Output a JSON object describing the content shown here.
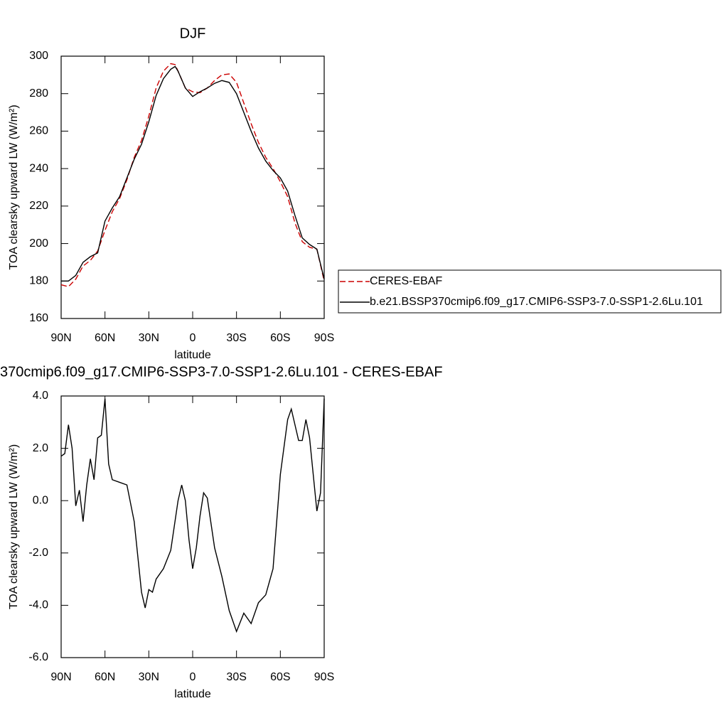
{
  "chart_data": [
    {
      "type": "line",
      "title": "DJF",
      "xlabel": "latitude",
      "ylabel": "TOA clearsky upward LW (W/m²)",
      "x": [
        90,
        85,
        80,
        75,
        70,
        65,
        60,
        55,
        50,
        45,
        40,
        35,
        30,
        25,
        20,
        15,
        12,
        10,
        5,
        0,
        -5,
        -10,
        -15,
        -20,
        -25,
        -30,
        -35,
        -40,
        -45,
        -50,
        -55,
        -60,
        -65,
        -70,
        -75,
        -80,
        -85,
        -90
      ],
      "series": [
        {
          "name": "CERES-EBAF",
          "color": "#cc0000",
          "linestyle": "dashed",
          "values": [
            178,
            177,
            181,
            188,
            191,
            196,
            207,
            217,
            224,
            234,
            246,
            255,
            268,
            283,
            292,
            296,
            295.5,
            292,
            283,
            281,
            280.5,
            283,
            287,
            290,
            290.5,
            286,
            275,
            264,
            254,
            246,
            240,
            233,
            225,
            211,
            201,
            198,
            197,
            180
          ]
        },
        {
          "name": "b.e21.BSSP370cmip6.f09_g17.CMIP6-SSP3-7.0-SSP1-2.6Lu.101",
          "color": "#000000",
          "linestyle": "solid",
          "values": [
            180,
            180,
            183,
            190,
            193,
            195,
            212,
            219,
            225,
            235,
            245,
            253,
            265,
            279,
            288,
            293,
            294.5,
            292,
            283,
            278.5,
            281,
            283,
            285.5,
            287,
            286,
            280,
            270,
            260,
            251,
            244,
            239,
            235,
            228,
            215,
            203,
            199.5,
            197,
            181
          ]
        }
      ],
      "xlim": [
        90,
        -90
      ],
      "ylim": [
        160,
        300
      ],
      "xticks": [
        {
          "value": 90,
          "label": "90N"
        },
        {
          "value": 60,
          "label": "60N"
        },
        {
          "value": 30,
          "label": "30N"
        },
        0,
        {
          "value": -30,
          "label": "30S"
        },
        {
          "value": -60,
          "label": "60S"
        },
        {
          "value": -90,
          "label": "90S"
        }
      ],
      "yticks": [
        160,
        180,
        200,
        220,
        240,
        260,
        280,
        300
      ]
    },
    {
      "type": "line",
      "title": "370cmip6.f09_g17.CMIP6-SSP3-7.0-SSP1-2.6Lu.101 - CERES-EBAF",
      "xlabel": "latitude",
      "ylabel": "TOA clearsky upward LW (W/m²)",
      "x": [
        90,
        87.5,
        85,
        82.5,
        80,
        77.5,
        75,
        72.5,
        70,
        67.5,
        65,
        62.5,
        60,
        57.5,
        55,
        50,
        45,
        40,
        35,
        32.5,
        30,
        27.5,
        25,
        20,
        15,
        10,
        7.5,
        5,
        2.5,
        0,
        -2.5,
        -5,
        -7.5,
        -10,
        -15,
        -20,
        -25,
        -30,
        -35,
        -40,
        -45,
        -50,
        -55,
        -60,
        -65,
        -67.5,
        -70,
        -72.5,
        -75,
        -77.5,
        -80,
        -85,
        -87.5,
        -90
      ],
      "values": [
        1.7,
        1.8,
        2.9,
        2.0,
        -0.2,
        0.4,
        -0.8,
        0.6,
        1.6,
        0.8,
        2.4,
        2.5,
        3.9,
        1.4,
        0.8,
        0.7,
        0.6,
        -0.8,
        -3.5,
        -4.1,
        -3.4,
        -3.5,
        -3.0,
        -2.6,
        -1.9,
        0.0,
        0.6,
        0.0,
        -1.5,
        -2.6,
        -1.8,
        -0.6,
        0.3,
        0.1,
        -1.8,
        -2.9,
        -4.2,
        -5.0,
        -4.3,
        -4.7,
        -3.9,
        -3.6,
        -2.6,
        1.0,
        3.1,
        3.5,
        2.9,
        2.3,
        2.3,
        3.1,
        2.4,
        -0.4,
        0.3,
        3.9
      ],
      "color": "#000000",
      "xlim": [
        90,
        -90
      ],
      "ylim": [
        -6,
        4
      ],
      "xticks": [
        {
          "value": 90,
          "label": "90N"
        },
        {
          "value": 60,
          "label": "60N"
        },
        {
          "value": 30,
          "label": "30N"
        },
        0,
        {
          "value": -30,
          "label": "30S"
        },
        {
          "value": -60,
          "label": "60S"
        },
        {
          "value": -90,
          "label": "90S"
        }
      ],
      "yticks": [
        {
          "value": -6,
          "label": "-6.0"
        },
        {
          "value": -4,
          "label": "-4.0"
        },
        {
          "value": -2,
          "label": "-2.0"
        },
        {
          "value": 0,
          "label": "0.0"
        },
        {
          "value": 2,
          "label": "2.0"
        },
        {
          "value": 4,
          "label": "4.0"
        }
      ]
    }
  ]
}
